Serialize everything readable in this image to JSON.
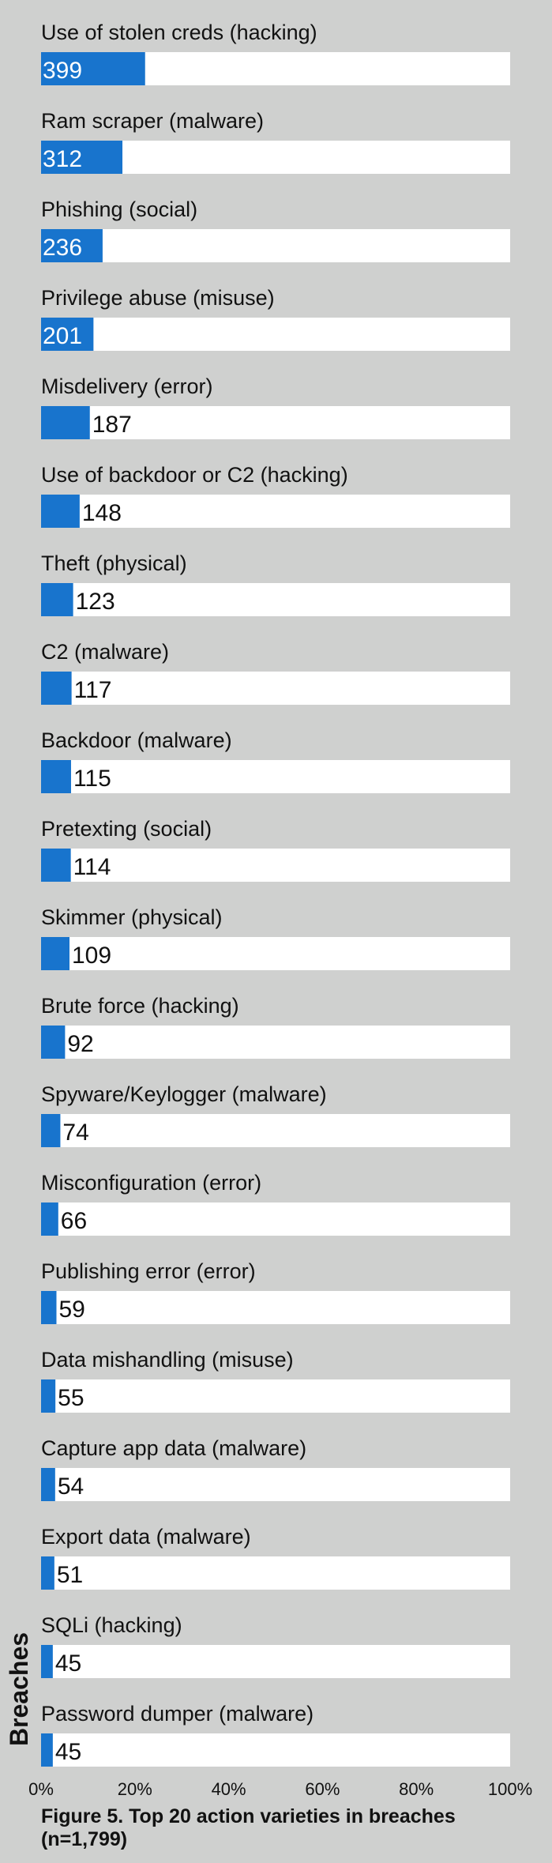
{
  "chart_data": {
    "type": "bar",
    "orientation": "horizontal",
    "categories": [
      "Use of stolen creds (hacking)",
      "Ram scraper (malware)",
      "Phishing (social)",
      "Privilege abuse (misuse)",
      "Misdelivery (error)",
      "Use of backdoor or C2 (hacking)",
      "Theft (physical)",
      "C2 (malware)",
      "Backdoor (malware)",
      "Pretexting (social)",
      "Skimmer (physical)",
      "Brute force (hacking)",
      "Spyware/Keylogger (malware)",
      "Misconfiguration (error)",
      "Publishing error (error)",
      "Data mishandling (misuse)",
      "Capture app data (malware)",
      "Export data (malware)",
      "SQLi (hacking)",
      "Password dumper (malware)"
    ],
    "values": [
      399,
      312,
      236,
      201,
      187,
      148,
      123,
      117,
      115,
      114,
      109,
      92,
      74,
      66,
      59,
      55,
      54,
      51,
      45,
      45
    ],
    "total": 1799,
    "value_labels": [
      "399",
      "312",
      "236",
      "201",
      "187",
      "148",
      "123",
      "117",
      "115",
      "114",
      "109",
      "92",
      "74",
      "66",
      "59",
      "55",
      "54",
      "51",
      "45",
      "45"
    ],
    "ylabel": "Breaches",
    "x_ticks": [
      "0%",
      "20%",
      "40%",
      "60%",
      "80%",
      "100%"
    ],
    "xlim": [
      0,
      1
    ],
    "grid": false,
    "colors": {
      "bar": "#1874cd",
      "track": "#ffffff",
      "background": "#cfd0cf",
      "label_inside": "#ffffff",
      "label_outside": "#111111"
    }
  },
  "caption": {
    "line1": "Figure 5.  Top 20 action varieties in breaches",
    "line2": "(n=1,799)"
  }
}
